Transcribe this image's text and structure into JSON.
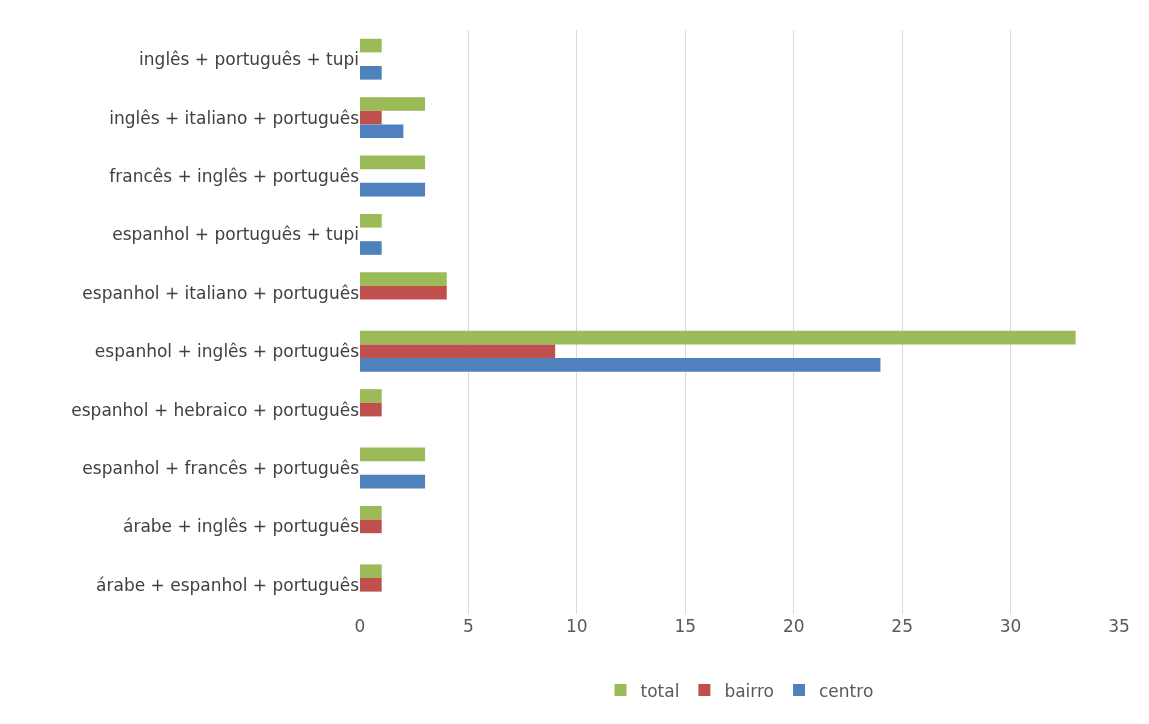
{
  "chart_data": {
    "type": "bar",
    "orientation": "horizontal",
    "categories": [
      "inglês + português + tupi",
      "inglês + italiano + português",
      "francês + inglês + português",
      "espanhol + português + tupi",
      "espanhol + italiano + português",
      "espanhol + inglês + português",
      "espanhol + hebraico + português",
      "espanhol + francês + português",
      "árabe + inglês + português",
      "árabe + espanhol + português"
    ],
    "series": [
      {
        "name": "total",
        "color": "#9bbb59",
        "values": [
          1,
          3,
          3,
          1,
          4,
          33,
          1,
          3,
          1,
          1
        ]
      },
      {
        "name": "bairro",
        "color": "#c0504d",
        "values": [
          0,
          1,
          0,
          0,
          4,
          9,
          1,
          0,
          1,
          1
        ]
      },
      {
        "name": "centro",
        "color": "#4f81bd",
        "values": [
          1,
          2,
          3,
          1,
          0,
          24,
          0,
          3,
          0,
          0
        ]
      }
    ],
    "xlim": [
      0,
      35
    ],
    "xticks": [
      0,
      5,
      10,
      15,
      20,
      25,
      30,
      35
    ],
    "grid": "x",
    "legend": "bottom"
  }
}
